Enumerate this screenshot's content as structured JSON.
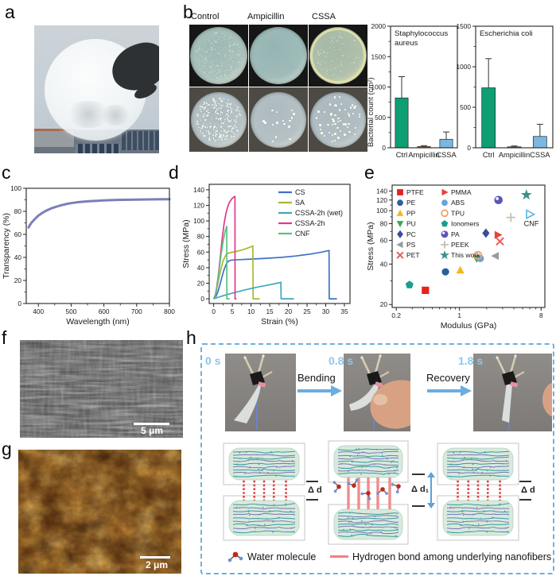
{
  "figure": {
    "panel_labels": {
      "a": "a",
      "b": "b",
      "c": "c",
      "d": "d",
      "e": "e",
      "f": "f",
      "g": "g",
      "h": "h"
    }
  },
  "panel_b": {
    "column_labels": [
      "Control",
      "Ampicillin",
      "CSSA"
    ],
    "ylabel": "Bacterial count (cm²)",
    "rows": [
      {
        "bg": "#161616"
      },
      {
        "bg": "#4d4a44"
      }
    ],
    "dishes": [
      {
        "row": 0,
        "col": 0,
        "base": "#a9c1bb",
        "mid": "#9db8b4",
        "rim": "#d8e0d2",
        "colonies": 220,
        "dot": "rgba(228,236,224,0.5)",
        "dot_min": 0.8,
        "dot_max": 1.6,
        "ring": false
      },
      {
        "row": 0,
        "col": 1,
        "base": "#9fbcba",
        "mid": "#96b4b2",
        "rim": "#d2dcd2",
        "colonies": 0,
        "dot": "rgba(228,236,224,0.5)",
        "dot_min": 0.8,
        "dot_max": 1.4,
        "ring": false
      },
      {
        "row": 0,
        "col": 2,
        "base": "#b0c0ac",
        "mid": "#a4b8a6",
        "rim": "#e6e2b2",
        "colonies": 90,
        "dot": "rgba(235,240,225,0.5)",
        "dot_min": 0.8,
        "dot_max": 1.5,
        "ring": true
      },
      {
        "row": 1,
        "col": 0,
        "base": "#b6c2c6",
        "mid": "#adbabf",
        "rim": "#dde0da",
        "colonies": 280,
        "dot": "rgba(246,246,234,0.85)",
        "dot_min": 1.0,
        "dot_max": 2.0,
        "ring": false
      },
      {
        "row": 1,
        "col": 1,
        "base": "#b5c1c5",
        "mid": "#adbabf",
        "rim": "#dadeda",
        "colonies": 16,
        "dot": "#fffdf0",
        "dot_min": 2.2,
        "dot_max": 2.9,
        "ring": false
      },
      {
        "row": 1,
        "col": 2,
        "base": "#b2bfc4",
        "mid": "#aab7bc",
        "rim": "#d8dcd8",
        "colonies": 52,
        "dot": "#fdfcee",
        "dot_min": 2.0,
        "dot_max": 2.6,
        "ring": false
      }
    ]
  },
  "chart_data": [
    {
      "panel": "b_left",
      "type": "bar",
      "title_lines": [
        "Staphylococcus",
        "aureus"
      ],
      "categories": [
        "Ctrl",
        "Ampicillin",
        "CSSA"
      ],
      "values": [
        820,
        20,
        140
      ],
      "errors": [
        350,
        15,
        120
      ],
      "bar_colors": [
        "#0f9e74",
        "#c2571f",
        "#7ab7e2"
      ],
      "ylim": [
        0,
        2000
      ],
      "yticks": [
        0,
        500,
        1000,
        1500,
        2000
      ],
      "yminors": [
        250,
        750,
        1250,
        1750
      ],
      "ylabel": "Bacterial count (cm²)"
    },
    {
      "panel": "b_right",
      "type": "bar",
      "title_lines": [
        "Escherichia coli"
      ],
      "categories": [
        "Ctrl",
        "Ampicillin",
        "CSSA"
      ],
      "values": [
        740,
        12,
        140
      ],
      "errors": [
        360,
        10,
        150
      ],
      "bar_colors": [
        "#0f9e74",
        "#c2571f",
        "#7ab7e2"
      ],
      "ylim": [
        0,
        1500
      ],
      "yticks": [
        0,
        500,
        1000,
        1500
      ],
      "yminors": [
        250,
        750,
        1250
      ],
      "ylabel": "Bacterial count (cm²)"
    },
    {
      "panel": "c",
      "type": "line",
      "xlabel": "Wavelength (nm)",
      "ylabel": "Transparency (%)",
      "xlim": [
        363,
        800
      ],
      "ylim": [
        0,
        100
      ],
      "xticks": [
        400,
        500,
        600,
        700,
        800
      ],
      "yticks": [
        0,
        20,
        40,
        60,
        80,
        100
      ],
      "xminors": [
        450,
        550,
        650,
        750
      ],
      "yminors": [
        10,
        30,
        50,
        70,
        90
      ],
      "color": "#7b7fb8",
      "points": [
        [
          370,
          66
        ],
        [
          375,
          68.5
        ],
        [
          380,
          70.5
        ],
        [
          385,
          72
        ],
        [
          390,
          73.5
        ],
        [
          395,
          75
        ],
        [
          400,
          76.3
        ],
        [
          410,
          78.3
        ],
        [
          420,
          80
        ],
        [
          430,
          81.4
        ],
        [
          440,
          82.6
        ],
        [
          450,
          83.6
        ],
        [
          460,
          84.5
        ],
        [
          470,
          85.3
        ],
        [
          480,
          86
        ],
        [
          490,
          86.6
        ],
        [
          500,
          87.1
        ],
        [
          520,
          87.9
        ],
        [
          540,
          88.5
        ],
        [
          560,
          88.9
        ],
        [
          580,
          89.2
        ],
        [
          600,
          89.5
        ],
        [
          640,
          89.9
        ],
        [
          680,
          90.1
        ],
        [
          720,
          90.3
        ],
        [
          760,
          90.4
        ],
        [
          800,
          90.5
        ]
      ]
    },
    {
      "panel": "d",
      "type": "multiline",
      "xlabel": "Strain (%)",
      "ylabel": "Stress (MPa)",
      "xlim": [
        -1.2,
        36.5
      ],
      "ylim": [
        -6,
        147
      ],
      "xticks": [
        0,
        5,
        10,
        15,
        20,
        25,
        30,
        35
      ],
      "yticks": [
        0,
        20,
        40,
        60,
        80,
        100,
        120,
        140
      ],
      "xminors": [
        2.5,
        7.5,
        12.5,
        17.5,
        22.5,
        27.5,
        32.5
      ],
      "yminors": [
        10,
        30,
        50,
        70,
        90,
        110,
        130
      ],
      "series": [
        {
          "name": "CS",
          "color": "#3f72c8",
          "points": [
            [
              0,
              0
            ],
            [
              0.6,
              3
            ],
            [
              1.2,
              10
            ],
            [
              2,
              24
            ],
            [
              2.8,
              38
            ],
            [
              3.5,
              46
            ],
            [
              4,
              48.5
            ],
            [
              4.5,
              49.5
            ],
            [
              5,
              49.8
            ],
            [
              7,
              50.3
            ],
            [
              10,
              51
            ],
            [
              14,
              52
            ],
            [
              18,
              53.2
            ],
            [
              22,
              55
            ],
            [
              26,
              57.5
            ],
            [
              29,
              60
            ],
            [
              30.8,
              62
            ],
            [
              30.9,
              62
            ],
            [
              30.95,
              0
            ],
            [
              33,
              0
            ]
          ]
        },
        {
          "name": "SA",
          "color": "#a9b832",
          "points": [
            [
              0,
              0
            ],
            [
              0.5,
              6
            ],
            [
              1,
              17
            ],
            [
              1.7,
              33
            ],
            [
              2.4,
              47
            ],
            [
              3,
              54
            ],
            [
              3.5,
              57.5
            ],
            [
              4,
              58.8
            ],
            [
              5,
              59.8
            ],
            [
              6,
              60.8
            ],
            [
              7,
              62
            ],
            [
              8,
              63.3
            ],
            [
              9,
              65
            ],
            [
              10,
              66.8
            ],
            [
              10.5,
              68
            ],
            [
              10.55,
              0
            ],
            [
              12.3,
              0
            ]
          ]
        },
        {
          "name": "CSSA-2h (wet)",
          "color": "#3fa8c0",
          "points": [
            [
              0,
              0
            ],
            [
              1,
              1.5
            ],
            [
              2,
              3.2
            ],
            [
              4,
              6
            ],
            [
              6,
              8.5
            ],
            [
              8,
              11
            ],
            [
              10,
              13.2
            ],
            [
              12,
              15.3
            ],
            [
              14,
              17.2
            ],
            [
              16,
              19
            ],
            [
              17.5,
              20.5
            ],
            [
              18,
              21.2
            ],
            [
              18.05,
              0
            ],
            [
              21.5,
              0
            ]
          ]
        },
        {
          "name": "CSSA-2h",
          "color": "#e03a87",
          "points": [
            [
              0,
              0
            ],
            [
              0.4,
              4
            ],
            [
              0.8,
              14
            ],
            [
              1.3,
              32
            ],
            [
              1.8,
              55
            ],
            [
              2.3,
              78
            ],
            [
              2.8,
              97
            ],
            [
              3.3,
              110
            ],
            [
              3.8,
              119
            ],
            [
              4.3,
              124.5
            ],
            [
              4.8,
              128
            ],
            [
              5.2,
              130
            ],
            [
              5.6,
              131.3
            ],
            [
              5.7,
              131.5
            ],
            [
              5.72,
              0
            ],
            [
              6.1,
              0
            ]
          ]
        },
        {
          "name": "CNF",
          "color": "#5fbf82",
          "points": [
            [
              0,
              0
            ],
            [
              0.4,
              3
            ],
            [
              0.8,
              12
            ],
            [
              1.2,
              26
            ],
            [
              1.6,
              42
            ],
            [
              2,
              57
            ],
            [
              2.4,
              70
            ],
            [
              2.8,
              80.5
            ],
            [
              3.1,
              87
            ],
            [
              3.4,
              91.5
            ],
            [
              3.5,
              93
            ],
            [
              3.52,
              0
            ],
            [
              4.3,
              0
            ]
          ]
        }
      ]
    },
    {
      "panel": "e",
      "type": "scatterlog",
      "xlabel": "Modulus (GPa)",
      "ylabel": "Stress (MPa)",
      "xlim": [
        0.18,
        8.8
      ],
      "ylim": [
        19,
        155
      ],
      "xticks": [
        0.2,
        1,
        8
      ],
      "yticks": [
        20,
        40,
        60,
        80,
        100,
        120,
        140
      ],
      "xminors": [
        0.3,
        0.4,
        0.5,
        0.6,
        0.7,
        0.8,
        0.9,
        2,
        3,
        4,
        5,
        6,
        7
      ],
      "yminors": [
        30,
        50,
        70,
        90,
        110,
        130
      ],
      "points": [
        {
          "label": "PTFE",
          "x": 0.42,
          "y": 25.5,
          "marker": "square",
          "color": "#e8211d"
        },
        {
          "label": "PE",
          "x": 0.7,
          "y": 35,
          "marker": "circle",
          "color": "#2b5f9e"
        },
        {
          "label": "PP",
          "x": 1.02,
          "y": 36,
          "marker": "tri-up",
          "color": "#f5b51d"
        },
        {
          "label": "PU",
          "x": 1.55,
          "y": 44,
          "marker": "tri-down",
          "color": "#3aa757"
        },
        {
          "label": "ABS",
          "x": 1.7,
          "y": 44,
          "marker": "circle",
          "color": "#6ba3d8"
        },
        {
          "label": "TPU",
          "x": 1.6,
          "y": 46.5,
          "marker": "circle-open",
          "color": "#f0a060"
        },
        {
          "label": "PC",
          "x": 1.96,
          "y": 68,
          "marker": "diamond",
          "color": "#3b4a9b"
        },
        {
          "label": "PS",
          "x": 2.5,
          "y": 46,
          "marker": "tri-left",
          "color": "#9b9b9b"
        },
        {
          "label": "PET",
          "x": 2.8,
          "y": 59,
          "marker": "xmark",
          "color": "#e85d5d"
        },
        {
          "label": "PMMA",
          "x": 2.66,
          "y": 66,
          "marker": "tri-right",
          "color": "#e8433a"
        },
        {
          "label": "Ionomers",
          "x": 0.28,
          "y": 28,
          "marker": "pentagon",
          "color": "#1b9e8f"
        },
        {
          "label": "PA",
          "x": 2.7,
          "y": 120,
          "marker": "sphere",
          "color": "#5c55b8"
        },
        {
          "label": "PEEK",
          "x": 3.7,
          "y": 89,
          "marker": "plus",
          "color": "#c9bdae"
        },
        {
          "label": "CNF",
          "x": 6.0,
          "y": 94,
          "marker": "tri-right-open",
          "color": "#5bb8e8",
          "point_label": "CNF"
        },
        {
          "label": "This work",
          "x": 5.5,
          "y": 131,
          "marker": "star",
          "color": "#3a9188"
        }
      ],
      "legend": [
        {
          "label": "PTFE",
          "marker": "square",
          "color": "#e8211d"
        },
        {
          "label": "PE",
          "marker": "circle",
          "color": "#2b5f9e"
        },
        {
          "label": "PP",
          "marker": "tri-up",
          "color": "#f5b51d"
        },
        {
          "label": "PU",
          "marker": "tri-down",
          "color": "#3aa757"
        },
        {
          "label": "PC",
          "marker": "diamond",
          "color": "#3b4a9b"
        },
        {
          "label": "PS",
          "marker": "tri-left",
          "color": "#9b9b9b"
        },
        {
          "label": "PET",
          "marker": "xmark",
          "color": "#e85d5d"
        },
        {
          "label": "PMMA",
          "marker": "tri-right",
          "color": "#e8433a"
        },
        {
          "label": "ABS",
          "marker": "circle",
          "color": "#6ba3d8"
        },
        {
          "label": "TPU",
          "marker": "circle-open",
          "color": "#f0a060"
        },
        {
          "label": "Ionomers",
          "marker": "pentagon",
          "color": "#1b9e8f"
        },
        {
          "label": "PA",
          "marker": "sphere",
          "color": "#5c55b8"
        },
        {
          "label": "PEEK",
          "marker": "plus",
          "color": "#c9bdae"
        },
        {
          "label": "This work",
          "marker": "star",
          "color": "#3a9188"
        }
      ]
    }
  ],
  "panel_f": {
    "scale_label": "5 μm"
  },
  "panel_g": {
    "scale_label": "2 μm"
  },
  "panel_h": {
    "timestamps": [
      "0 s",
      "0.8 s",
      "1.8 s"
    ],
    "arrows": [
      "Bending",
      "Recovery"
    ],
    "delta_labels": [
      "Δ d",
      "Δ d₁",
      "Δ d"
    ],
    "legend": {
      "water": "Water molecule",
      "hbond": "Hydrogen bond among underlying nanofibers"
    },
    "schematics": [
      {
        "bonds": "dashed",
        "molecules": false
      },
      {
        "bonds": "solid",
        "molecules": true
      },
      {
        "bonds": "dashed",
        "molecules": false
      }
    ]
  }
}
